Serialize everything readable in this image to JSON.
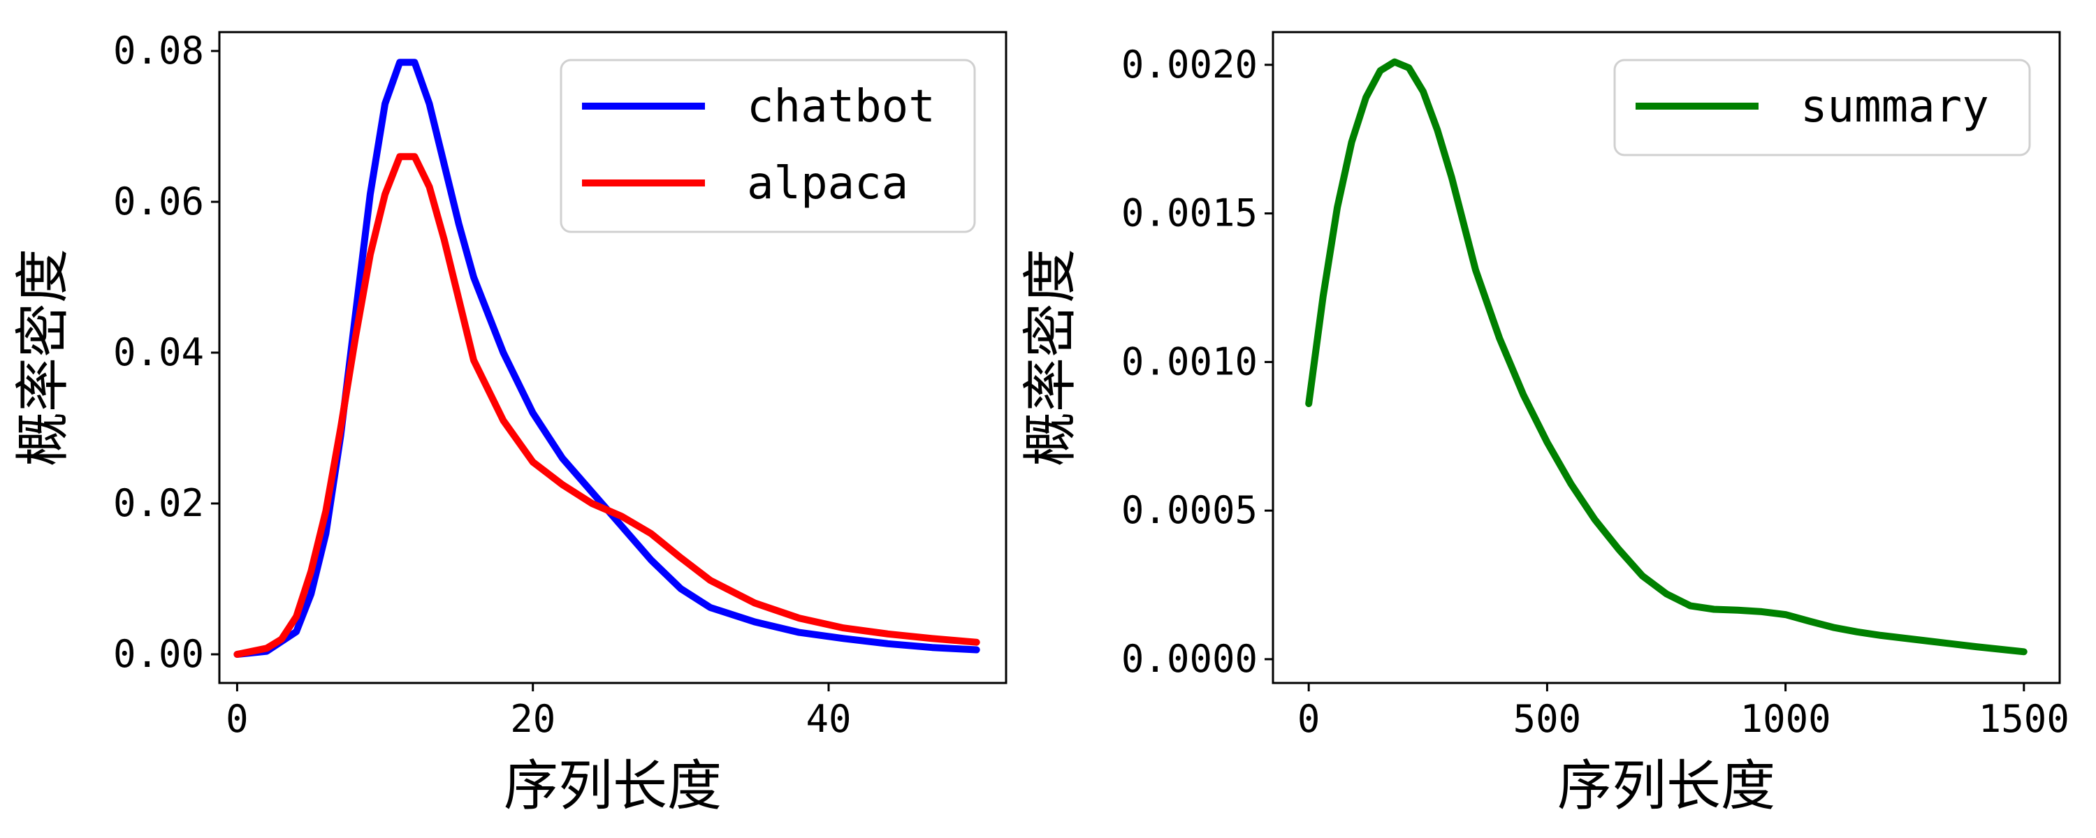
{
  "chart_data": [
    {
      "type": "line",
      "title": "",
      "xlabel": "序列长度",
      "ylabel": "概率密度",
      "xlim": [
        -1.2,
        52
      ],
      "ylim": [
        -0.0038,
        0.0825
      ],
      "xticks": [
        {
          "value": 0,
          "label": "0"
        },
        {
          "value": 20,
          "label": "20"
        },
        {
          "value": 40,
          "label": "40"
        }
      ],
      "yticks": [
        {
          "value": 0,
          "label": "0.00"
        },
        {
          "value": 0.02,
          "label": "0.02"
        },
        {
          "value": 0.04,
          "label": "0.04"
        },
        {
          "value": 0.06,
          "label": "0.06"
        },
        {
          "value": 0.08,
          "label": "0.08"
        }
      ],
      "legend_position": "top-right",
      "grid": false,
      "series": [
        {
          "name": "chatbot",
          "color": "#0000ff",
          "x": [
            0,
            2,
            4,
            5,
            6,
            7,
            8,
            9,
            10,
            11,
            12,
            13,
            14,
            15,
            16,
            18,
            20,
            22,
            24,
            26,
            28,
            30,
            32,
            35,
            38,
            41,
            44,
            47,
            50
          ],
          "y": [
            0.0,
            0.0004,
            0.003,
            0.008,
            0.016,
            0.029,
            0.045,
            0.061,
            0.073,
            0.0785,
            0.0785,
            0.073,
            0.065,
            0.057,
            0.05,
            0.04,
            0.032,
            0.026,
            0.0215,
            0.017,
            0.0125,
            0.0087,
            0.0062,
            0.0043,
            0.0029,
            0.0021,
            0.0014,
            0.0009,
            0.0006
          ]
        },
        {
          "name": "alpaca",
          "color": "#ff0000",
          "x": [
            0,
            2,
            3,
            4,
            5,
            6,
            7,
            8,
            9,
            10,
            11,
            12,
            13,
            14,
            15,
            16,
            18,
            20,
            22,
            24,
            26,
            28,
            30,
            32,
            35,
            38,
            41,
            44,
            47,
            50
          ],
          "y": [
            0.0,
            0.0008,
            0.002,
            0.005,
            0.011,
            0.019,
            0.03,
            0.042,
            0.053,
            0.061,
            0.066,
            0.066,
            0.062,
            0.055,
            0.047,
            0.039,
            0.031,
            0.0255,
            0.0225,
            0.02,
            0.0183,
            0.016,
            0.0128,
            0.0098,
            0.0068,
            0.0048,
            0.0035,
            0.0027,
            0.0021,
            0.0016
          ]
        }
      ]
    },
    {
      "type": "line",
      "title": "",
      "xlabel": "序列长度",
      "ylabel": "概率密度",
      "xlim": [
        -75,
        1575
      ],
      "ylim": [
        -8e-05,
        0.00211
      ],
      "xticks": [
        {
          "value": 0,
          "label": "0"
        },
        {
          "value": 500,
          "label": "500"
        },
        {
          "value": 1000,
          "label": "1000"
        },
        {
          "value": 1500,
          "label": "1500"
        }
      ],
      "yticks": [
        {
          "value": 0,
          "label": "0.0000"
        },
        {
          "value": 0.0005,
          "label": "0.0005"
        },
        {
          "value": 0.001,
          "label": "0.0010"
        },
        {
          "value": 0.0015,
          "label": "0.0015"
        },
        {
          "value": 0.002,
          "label": "0.0020"
        }
      ],
      "legend_position": "top-right",
      "grid": false,
      "series": [
        {
          "name": "summary",
          "color": "#008000",
          "x": [
            0,
            30,
            60,
            90,
            120,
            150,
            180,
            210,
            240,
            270,
            300,
            350,
            400,
            450,
            500,
            550,
            600,
            650,
            700,
            750,
            800,
            850,
            900,
            950,
            1000,
            1050,
            1100,
            1150,
            1200,
            1300,
            1400,
            1500
          ],
          "y": [
            0.00086,
            0.00122,
            0.00152,
            0.00174,
            0.00189,
            0.00198,
            0.00201,
            0.00199,
            0.00191,
            0.00178,
            0.00162,
            0.00131,
            0.00108,
            0.00089,
            0.00073,
            0.00059,
            0.00047,
            0.00037,
            0.00028,
            0.00022,
            0.00018,
            0.000168,
            0.000165,
            0.00016,
            0.00015,
            0.000128,
            0.000107,
            9.2e-05,
            8e-05,
            6.1e-05,
            4.2e-05,
            2.5e-05
          ]
        }
      ]
    }
  ]
}
